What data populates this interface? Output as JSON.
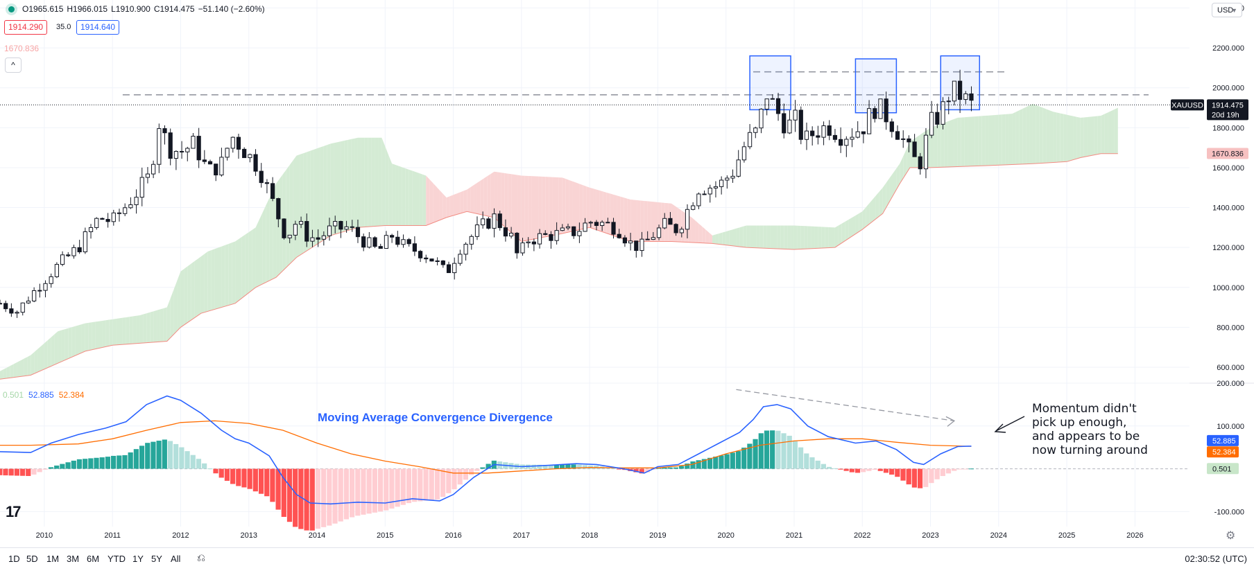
{
  "legend": {
    "open": "O1965.615",
    "high": "H1966.015",
    "low": "L1910.900",
    "close": "C1914.475",
    "change": "−51.140 (−2.60%)",
    "bid": "1914.290",
    "spread": "35.0",
    "ask": "1914.640",
    "cloud_value": "1670.836",
    "macd_hist": "0.501",
    "macd_line": "52.885",
    "macd_signal": "52.384"
  },
  "currency": "USD",
  "timeframes": [
    "1D",
    "5D",
    "1M",
    "3M",
    "6M",
    "YTD",
    "1Y",
    "5Y",
    "All"
  ],
  "clock": "02:30:52 (UTC)",
  "colors": {
    "up": "#089981",
    "down": "#f23645",
    "macd": "#2962ff",
    "signal": "#ff6d00",
    "cloud_up": "#d4ebd4",
    "cloud_down": "#f9d4d4",
    "box": "#2962ff"
  },
  "chart_data": [
    {
      "type": "candlestick",
      "symbol": "XAUUSD",
      "interval": "1M",
      "last_price": "1914.475",
      "countdown": "20d 19h",
      "cloud_label": "1670.836",
      "y_ticks": [
        "600.000",
        "800.000",
        "1000.000",
        "1200.000",
        "1400.000",
        "1600.000",
        "1800.000",
        "2000.000",
        "2200.000",
        "2400.000"
      ],
      "ylim": [
        520,
        2440
      ],
      "x_ticks": [
        "2010",
        "2011",
        "2012",
        "2013",
        "2014",
        "2015",
        "2016",
        "2017",
        "2018",
        "2019",
        "2020",
        "2021",
        "2022",
        "2023",
        "2024",
        "2025",
        "2026"
      ],
      "xlim": [
        2009.35,
        2026.8
      ],
      "grid": true,
      "anchors": [
        [
          2009.35,
          920
        ],
        [
          2009.6,
          880
        ],
        [
          2009.9,
          1000
        ],
        [
          2010.2,
          1110
        ],
        [
          2010.5,
          1200
        ],
        [
          2010.8,
          1350
        ],
        [
          2011.0,
          1330
        ],
        [
          2011.3,
          1450
        ],
        [
          2011.55,
          1560
        ],
        [
          2011.68,
          1830
        ],
        [
          2011.82,
          1700
        ],
        [
          2012.0,
          1680
        ],
        [
          2012.2,
          1720
        ],
        [
          2012.4,
          1580
        ],
        [
          2012.6,
          1620
        ],
        [
          2012.75,
          1760
        ],
        [
          2012.95,
          1680
        ],
        [
          2013.15,
          1600
        ],
        [
          2013.3,
          1470
        ],
        [
          2013.45,
          1340
        ],
        [
          2013.55,
          1250
        ],
        [
          2013.7,
          1330
        ],
        [
          2013.85,
          1260
        ],
        [
          2014.0,
          1240
        ],
        [
          2014.2,
          1290
        ],
        [
          2014.45,
          1300
        ],
        [
          2014.7,
          1230
        ],
        [
          2014.9,
          1180
        ],
        [
          2015.1,
          1260
        ],
        [
          2015.3,
          1200
        ],
        [
          2015.5,
          1180
        ],
        [
          2015.7,
          1140
        ],
        [
          2015.9,
          1070
        ],
        [
          2016.1,
          1200
        ],
        [
          2016.4,
          1300
        ],
        [
          2016.6,
          1350
        ],
        [
          2016.85,
          1250
        ],
        [
          2016.95,
          1150
        ],
        [
          2017.1,
          1240
        ],
        [
          2017.4,
          1260
        ],
        [
          2017.6,
          1270
        ],
        [
          2017.8,
          1280
        ],
        [
          2018.0,
          1330
        ],
        [
          2018.2,
          1320
        ],
        [
          2018.4,
          1300
        ],
        [
          2018.6,
          1220
        ],
        [
          2018.75,
          1200
        ],
        [
          2018.95,
          1270
        ],
        [
          2019.1,
          1310
        ],
        [
          2019.3,
          1290
        ],
        [
          2019.45,
          1400
        ],
        [
          2019.6,
          1500
        ],
        [
          2019.9,
          1510
        ],
        [
          2020.1,
          1580
        ],
        [
          2020.3,
          1730
        ],
        [
          2020.45,
          1780
        ],
        [
          2020.6,
          1970
        ],
        [
          2020.75,
          1880
        ],
        [
          2020.9,
          1800
        ],
        [
          2021.0,
          1850
        ],
        [
          2021.15,
          1730
        ],
        [
          2021.3,
          1780
        ],
        [
          2021.5,
          1810
        ],
        [
          2021.7,
          1760
        ],
        [
          2021.85,
          1780
        ],
        [
          2022.0,
          1800
        ],
        [
          2022.2,
          1910
        ],
        [
          2022.35,
          1860
        ],
        [
          2022.55,
          1770
        ],
        [
          2022.75,
          1640
        ],
        [
          2022.85,
          1630
        ],
        [
          2023.0,
          1820
        ],
        [
          2023.15,
          1870
        ],
        [
          2023.3,
          1990
        ],
        [
          2023.45,
          1960
        ],
        [
          2023.6,
          1914
        ]
      ],
      "cloud": {
        "top": [
          [
            2009.35,
            580
          ],
          [
            2009.8,
            660
          ],
          [
            2010.2,
            780
          ],
          [
            2010.6,
            820
          ],
          [
            2011.0,
            840
          ],
          [
            2011.4,
            860
          ],
          [
            2011.8,
            900
          ],
          [
            2012.0,
            1080
          ],
          [
            2012.4,
            1180
          ],
          [
            2012.8,
            1230
          ],
          [
            2013.1,
            1300
          ],
          [
            2013.4,
            1520
          ],
          [
            2013.7,
            1660
          ],
          [
            2014.2,
            1720
          ],
          [
            2014.6,
            1750
          ],
          [
            2014.95,
            1750
          ],
          [
            2015.1,
            1620
          ],
          [
            2015.6,
            1560
          ],
          [
            2015.9,
            1450
          ],
          [
            2016.2,
            1490
          ],
          [
            2016.6,
            1580
          ],
          [
            2017.0,
            1560
          ],
          [
            2017.6,
            1550
          ],
          [
            2018.0,
            1500
          ],
          [
            2018.6,
            1440
          ],
          [
            2019.2,
            1420
          ],
          [
            2019.5,
            1350
          ],
          [
            2019.8,
            1260
          ],
          [
            2020.3,
            1310
          ],
          [
            2021.0,
            1310
          ],
          [
            2021.6,
            1300
          ],
          [
            2022.0,
            1380
          ],
          [
            2022.3,
            1500
          ],
          [
            2022.55,
            1620
          ],
          [
            2022.7,
            1730
          ],
          [
            2023.0,
            1800
          ],
          [
            2023.4,
            1850
          ],
          [
            2023.8,
            1860
          ],
          [
            2024.2,
            1870
          ],
          [
            2024.5,
            1920
          ],
          [
            2024.8,
            1880
          ],
          [
            2025.2,
            1850
          ],
          [
            2025.5,
            1860
          ],
          [
            2025.75,
            1900
          ]
        ],
        "bottom": [
          [
            2009.35,
            540
          ],
          [
            2009.8,
            560
          ],
          [
            2010.2,
            620
          ],
          [
            2010.6,
            680
          ],
          [
            2011.0,
            710
          ],
          [
            2011.4,
            720
          ],
          [
            2011.8,
            730
          ],
          [
            2012.0,
            800
          ],
          [
            2012.3,
            870
          ],
          [
            2012.8,
            920
          ],
          [
            2013.1,
            1000
          ],
          [
            2013.4,
            1050
          ],
          [
            2013.7,
            1150
          ],
          [
            2014.2,
            1260
          ],
          [
            2014.6,
            1300
          ],
          [
            2015.0,
            1310
          ],
          [
            2015.6,
            1310
          ],
          [
            2015.9,
            1350
          ],
          [
            2016.2,
            1380
          ],
          [
            2016.6,
            1350
          ],
          [
            2017.0,
            1230
          ],
          [
            2017.6,
            1270
          ],
          [
            2018.0,
            1300
          ],
          [
            2018.6,
            1230
          ],
          [
            2019.2,
            1230
          ],
          [
            2019.8,
            1220
          ],
          [
            2020.3,
            1200
          ],
          [
            2021.0,
            1190
          ],
          [
            2021.6,
            1200
          ],
          [
            2022.0,
            1290
          ],
          [
            2022.3,
            1370
          ],
          [
            2022.55,
            1520
          ],
          [
            2022.7,
            1600
          ],
          [
            2023.0,
            1600
          ],
          [
            2023.8,
            1610
          ],
          [
            2024.5,
            1620
          ],
          [
            2025.0,
            1630
          ],
          [
            2025.2,
            1650
          ],
          [
            2025.5,
            1670
          ],
          [
            2025.75,
            1670
          ]
        ]
      },
      "resistance_levels": [
        1965,
        2080
      ],
      "resistance_spans": [
        [
          2011.15,
          2026.2
        ],
        [
          2020.4,
          2024.1
        ]
      ],
      "zones": [
        {
          "x0": 2020.35,
          "x1": 2020.95,
          "y0": 1890,
          "y1": 2160
        },
        {
          "x0": 2021.9,
          "x1": 2022.5,
          "y0": 1875,
          "y1": 2145
        },
        {
          "x0": 2023.15,
          "x1": 2023.72,
          "y0": 1890,
          "y1": 2160
        }
      ]
    },
    {
      "type": "macd",
      "title": "Moving Average Convergence Divergence",
      "y_ticks": [
        "-100.000",
        "100.000",
        "200.000"
      ],
      "ylim": [
        -135,
        200
      ],
      "hist_label": "0.501",
      "macd_label": "52.885",
      "signal_label": "52.384",
      "macd_line": [
        [
          2009.35,
          40
        ],
        [
          2009.8,
          38
        ],
        [
          2010.1,
          60
        ],
        [
          2010.5,
          80
        ],
        [
          2010.9,
          95
        ],
        [
          2011.2,
          110
        ],
        [
          2011.5,
          150
        ],
        [
          2011.8,
          170
        ],
        [
          2012.0,
          160
        ],
        [
          2012.3,
          130
        ],
        [
          2012.6,
          90
        ],
        [
          2012.8,
          70
        ],
        [
          2013.0,
          60
        ],
        [
          2013.3,
          30
        ],
        [
          2013.5,
          -20
        ],
        [
          2013.7,
          -60
        ],
        [
          2013.9,
          -80
        ],
        [
          2014.2,
          -82
        ],
        [
          2014.6,
          -78
        ],
        [
          2015.0,
          -80
        ],
        [
          2015.4,
          -70
        ],
        [
          2015.8,
          -75
        ],
        [
          2016.0,
          -60
        ],
        [
          2016.3,
          -20
        ],
        [
          2016.6,
          10
        ],
        [
          2017.0,
          5
        ],
        [
          2017.4,
          8
        ],
        [
          2017.8,
          12
        ],
        [
          2018.1,
          10
        ],
        [
          2018.5,
          0
        ],
        [
          2018.8,
          -10
        ],
        [
          2019.0,
          5
        ],
        [
          2019.3,
          10
        ],
        [
          2019.6,
          35
        ],
        [
          2019.9,
          60
        ],
        [
          2020.2,
          85
        ],
        [
          2020.4,
          115
        ],
        [
          2020.55,
          145
        ],
        [
          2020.75,
          150
        ],
        [
          2020.95,
          140
        ],
        [
          2021.2,
          100
        ],
        [
          2021.5,
          75
        ],
        [
          2021.9,
          60
        ],
        [
          2022.2,
          65
        ],
        [
          2022.5,
          45
        ],
        [
          2022.75,
          15
        ],
        [
          2022.9,
          10
        ],
        [
          2023.15,
          35
        ],
        [
          2023.4,
          52
        ],
        [
          2023.6,
          52.885
        ]
      ],
      "signal_line": [
        [
          2009.35,
          55
        ],
        [
          2009.8,
          55
        ],
        [
          2010.5,
          58
        ],
        [
          2011.0,
          70
        ],
        [
          2011.5,
          90
        ],
        [
          2012.0,
          108
        ],
        [
          2012.5,
          112
        ],
        [
          2013.0,
          106
        ],
        [
          2013.5,
          90
        ],
        [
          2014.0,
          60
        ],
        [
          2014.5,
          35
        ],
        [
          2015.0,
          18
        ],
        [
          2015.5,
          5
        ],
        [
          2016.0,
          -10
        ],
        [
          2016.5,
          -10
        ],
        [
          2017.0,
          -5
        ],
        [
          2017.5,
          0
        ],
        [
          2018.0,
          3
        ],
        [
          2018.5,
          2
        ],
        [
          2019.0,
          2
        ],
        [
          2019.5,
          10
        ],
        [
          2020.0,
          35
        ],
        [
          2020.5,
          55
        ],
        [
          2021.0,
          65
        ],
        [
          2021.5,
          70
        ],
        [
          2022.0,
          70
        ],
        [
          2022.5,
          62
        ],
        [
          2023.0,
          55
        ],
        [
          2023.6,
          52.384
        ]
      ],
      "trend_line": [
        [
          2020.15,
          185
        ],
        [
          2023.35,
          112
        ]
      ]
    }
  ],
  "annotations": {
    "momentum_note": [
      "Momentum didn't",
      "pick up enough,",
      "and appears to be",
      "now turning around"
    ]
  }
}
